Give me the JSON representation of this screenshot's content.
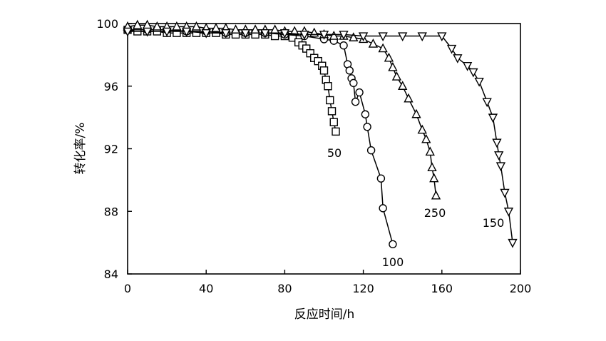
{
  "chart_data": {
    "type": "line",
    "title": "",
    "xlabel": "反应时间/h",
    "ylabel": "转化率/%",
    "xlim": [
      0,
      200
    ],
    "ylim": [
      84,
      100
    ],
    "x_ticks": [
      0,
      40,
      80,
      120,
      160,
      200
    ],
    "y_ticks": [
      84,
      88,
      92,
      96,
      100
    ],
    "grid": false,
    "legend": "none",
    "series": [
      {
        "name": "50",
        "marker": "square",
        "points": [
          [
            0,
            99.6
          ],
          [
            5,
            99.5
          ],
          [
            10,
            99.5
          ],
          [
            15,
            99.5
          ],
          [
            20,
            99.4
          ],
          [
            25,
            99.4
          ],
          [
            30,
            99.4
          ],
          [
            35,
            99.4
          ],
          [
            40,
            99.4
          ],
          [
            45,
            99.4
          ],
          [
            50,
            99.3
          ],
          [
            55,
            99.3
          ],
          [
            60,
            99.3
          ],
          [
            65,
            99.3
          ],
          [
            70,
            99.3
          ],
          [
            75,
            99.2
          ],
          [
            80,
            99.2
          ],
          [
            84,
            99.1
          ],
          [
            87,
            98.8
          ],
          [
            89,
            98.6
          ],
          [
            91,
            98.4
          ],
          [
            93,
            98.1
          ],
          [
            95,
            97.8
          ],
          [
            97,
            97.6
          ],
          [
            99,
            97.3
          ],
          [
            100,
            97.0
          ],
          [
            101,
            96.4
          ],
          [
            102,
            96.0
          ],
          [
            103,
            95.1
          ],
          [
            104,
            94.4
          ],
          [
            105,
            93.7
          ],
          [
            106,
            93.1
          ]
        ]
      },
      {
        "name": "100",
        "marker": "circle",
        "points": [
          [
            0,
            99.6
          ],
          [
            10,
            99.6
          ],
          [
            20,
            99.6
          ],
          [
            30,
            99.5
          ],
          [
            40,
            99.5
          ],
          [
            50,
            99.4
          ],
          [
            60,
            99.4
          ],
          [
            70,
            99.4
          ],
          [
            80,
            99.3
          ],
          [
            90,
            99.2
          ],
          [
            100,
            99.0
          ],
          [
            105,
            98.9
          ],
          [
            110,
            98.6
          ],
          [
            112,
            97.4
          ],
          [
            113,
            97.0
          ],
          [
            114,
            96.5
          ],
          [
            115,
            96.2
          ],
          [
            116,
            95.0
          ],
          [
            118,
            95.6
          ],
          [
            121,
            94.2
          ],
          [
            122,
            93.4
          ],
          [
            124,
            91.9
          ],
          [
            129,
            90.1
          ],
          [
            130,
            88.2
          ],
          [
            135,
            85.9
          ]
        ]
      },
      {
        "name": "250",
        "marker": "triangle-up",
        "points": [
          [
            0,
            99.8
          ],
          [
            5,
            99.9
          ],
          [
            10,
            99.9
          ],
          [
            15,
            99.8
          ],
          [
            20,
            99.8
          ],
          [
            25,
            99.8
          ],
          [
            30,
            99.8
          ],
          [
            35,
            99.8
          ],
          [
            40,
            99.7
          ],
          [
            45,
            99.7
          ],
          [
            50,
            99.7
          ],
          [
            55,
            99.6
          ],
          [
            60,
            99.6
          ],
          [
            65,
            99.6
          ],
          [
            70,
            99.6
          ],
          [
            75,
            99.6
          ],
          [
            80,
            99.5
          ],
          [
            85,
            99.5
          ],
          [
            90,
            99.5
          ],
          [
            95,
            99.4
          ],
          [
            100,
            99.3
          ],
          [
            105,
            99.2
          ],
          [
            110,
            99.2
          ],
          [
            115,
            99.1
          ],
          [
            120,
            99.0
          ],
          [
            125,
            98.7
          ],
          [
            130,
            98.4
          ],
          [
            133,
            97.8
          ],
          [
            135,
            97.2
          ],
          [
            137,
            96.6
          ],
          [
            140,
            96.0
          ],
          [
            143,
            95.2
          ],
          [
            147,
            94.2
          ],
          [
            150,
            93.2
          ],
          [
            152,
            92.6
          ],
          [
            154,
            91.8
          ],
          [
            155,
            90.8
          ],
          [
            156,
            90.1
          ],
          [
            157,
            89.0
          ]
        ]
      },
      {
        "name": "150",
        "marker": "triangle-down",
        "points": [
          [
            0,
            99.5
          ],
          [
            10,
            99.5
          ],
          [
            20,
            99.5
          ],
          [
            30,
            99.5
          ],
          [
            40,
            99.4
          ],
          [
            50,
            99.4
          ],
          [
            60,
            99.4
          ],
          [
            70,
            99.4
          ],
          [
            80,
            99.4
          ],
          [
            90,
            99.3
          ],
          [
            100,
            99.3
          ],
          [
            110,
            99.3
          ],
          [
            120,
            99.2
          ],
          [
            130,
            99.2
          ],
          [
            140,
            99.2
          ],
          [
            150,
            99.2
          ],
          [
            160,
            99.2
          ],
          [
            165,
            98.4
          ],
          [
            168,
            97.8
          ],
          [
            173,
            97.3
          ],
          [
            176,
            96.9
          ],
          [
            179,
            96.3
          ],
          [
            183,
            95.0
          ],
          [
            186,
            94.0
          ],
          [
            188,
            92.4
          ],
          [
            189,
            91.6
          ],
          [
            190,
            90.9
          ],
          [
            192,
            89.2
          ],
          [
            194,
            88.0
          ],
          [
            196,
            86.0
          ]
        ]
      }
    ]
  }
}
